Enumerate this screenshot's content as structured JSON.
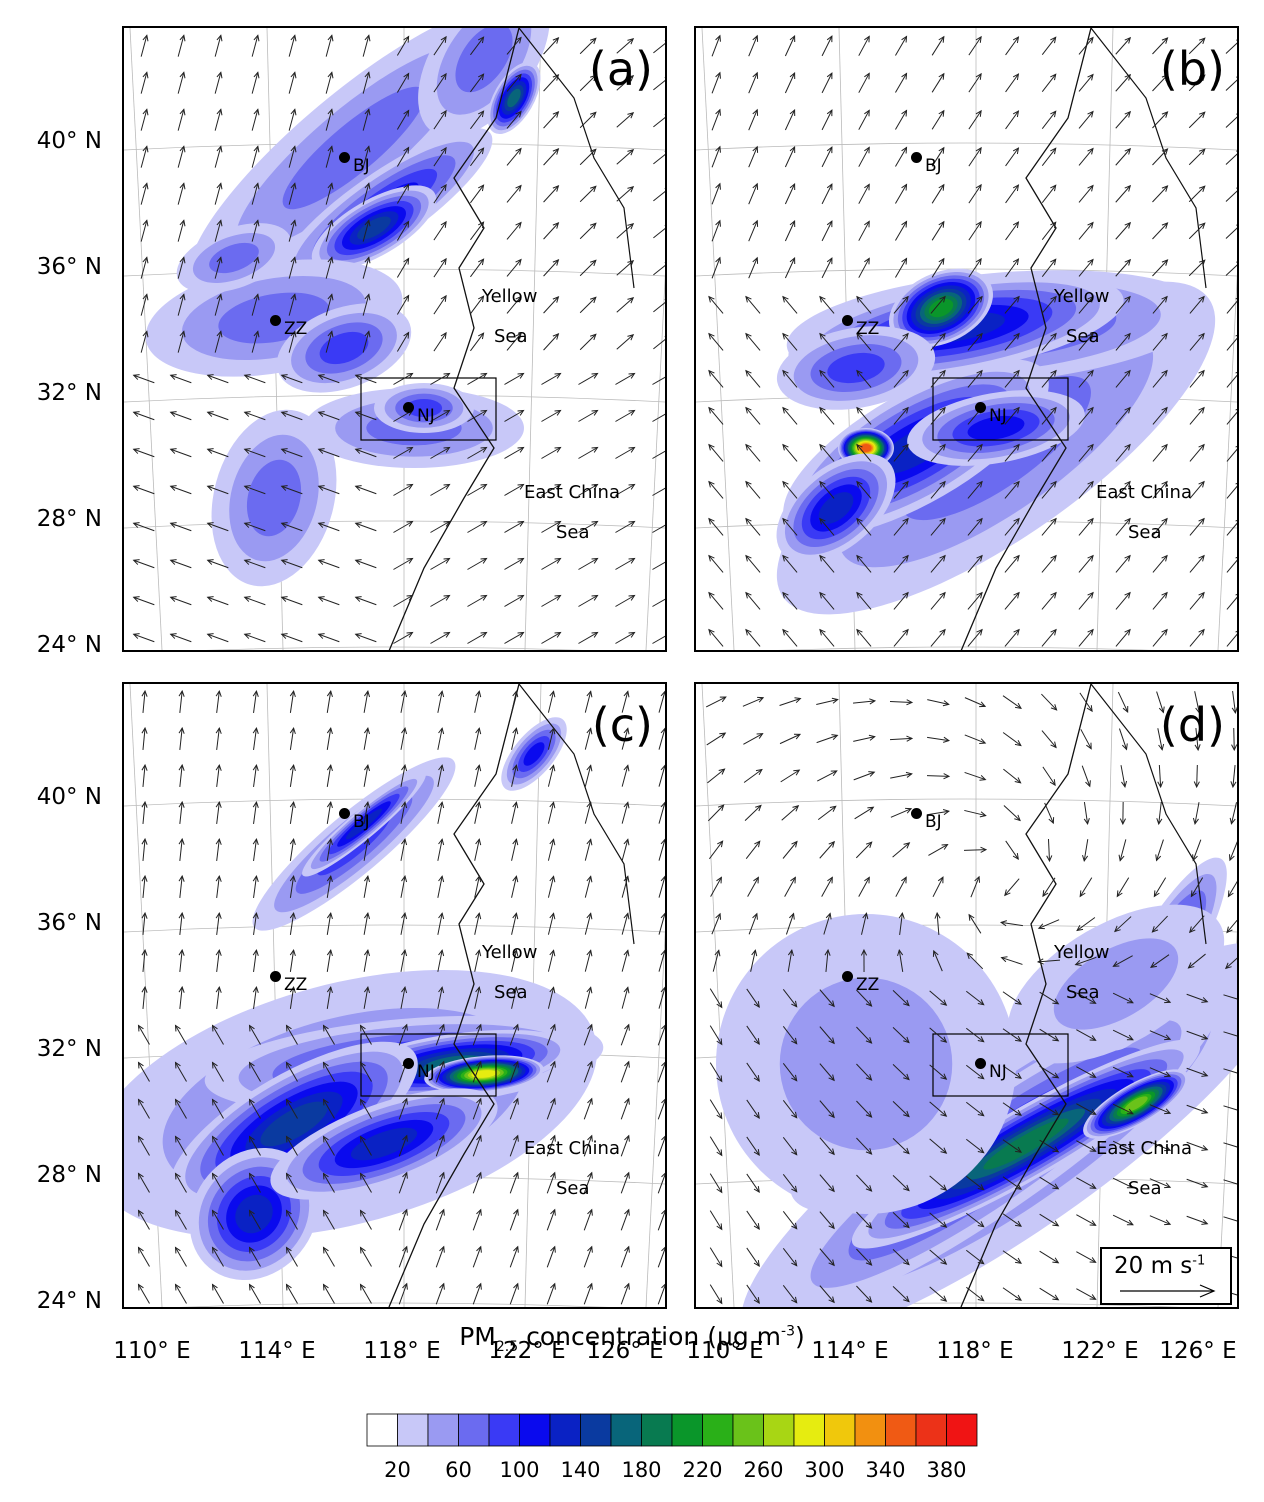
{
  "panels": [
    {
      "label": "(a)"
    },
    {
      "label": "(b)"
    },
    {
      "label": "(c)"
    },
    {
      "label": "(d)"
    }
  ],
  "y_axis_labels": [
    "40° N",
    "36° N",
    "32° N",
    "28° N",
    "24° N"
  ],
  "x_axis_labels": [
    "110° E",
    "114° E",
    "118° E",
    "122° E",
    "126° E"
  ],
  "cities": {
    "bj": "BJ",
    "zz": "ZZ",
    "nj": "NJ"
  },
  "seas": {
    "yellow_1": "Yellow",
    "yellow_2": "Sea",
    "east_1": "East China",
    "east_2": "Sea"
  },
  "reference_vector": {
    "value": "20 m s",
    "unit_sup": "-1"
  },
  "colorbar": {
    "title_prefix": "PM",
    "title_sub": "2.5",
    "title_suffix": " concentration (μg m",
    "title_sup": "-3",
    "title_end": ")",
    "ticks": [
      "20",
      "60",
      "100",
      "140",
      "180",
      "220",
      "260",
      "300",
      "340",
      "380"
    ],
    "colors": [
      "#ffffff",
      "#c8c8f8",
      "#9a9af2",
      "#6b6bf0",
      "#3a3af5",
      "#0a0aee",
      "#0a22c4",
      "#0a3aa0",
      "#08657a",
      "#087a50",
      "#0a962a",
      "#2ab018",
      "#6ac21a",
      "#a8d614",
      "#e6ec10",
      "#f0c80c",
      "#f29010",
      "#f05a14",
      "#ec3218",
      "#f01414"
    ]
  }
}
